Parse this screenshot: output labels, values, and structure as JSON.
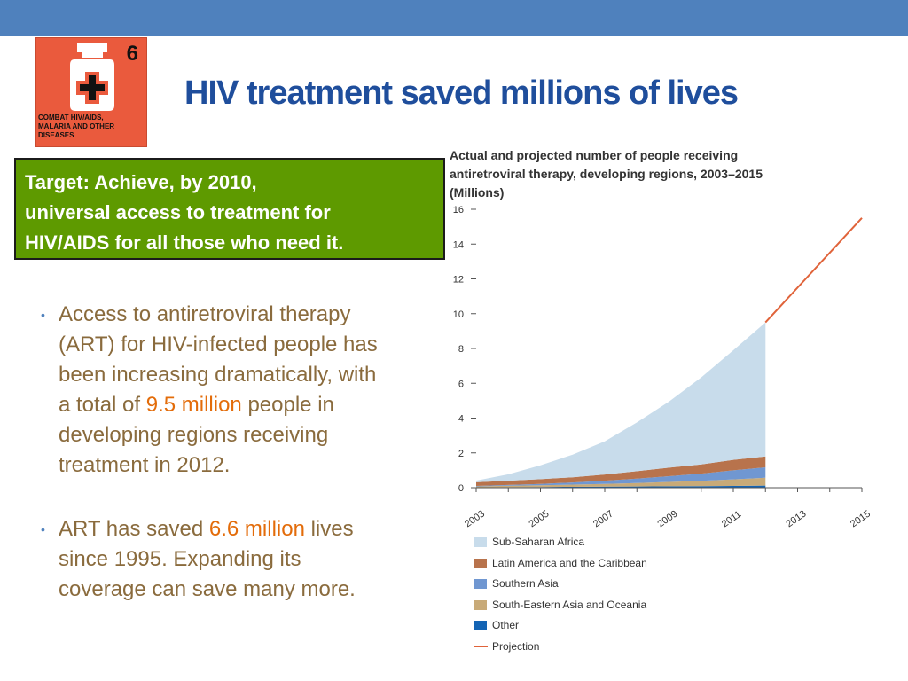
{
  "slide": {
    "title": "HIV treatment saved millions of lives",
    "accent_bar_color": "#4f81bd"
  },
  "mdg_badge": {
    "number": "6",
    "lines": [
      "COMBAT HIV/AIDS,",
      "MALARIA AND OTHER",
      "DISEASES"
    ],
    "icon": "medicine-bottle-icon",
    "color": "#ea5a3d"
  },
  "target_box": {
    "lines": [
      "Target:  Achieve, by 2010,",
      "universal access to treatment for",
      "HIV/AIDS for all those who need it."
    ],
    "background": "#5e9a00"
  },
  "bullets": [
    {
      "lines": [
        [
          "Access to antiretroviral therapy"
        ],
        [
          "(ART) for HIV-infected people has"
        ],
        [
          "been increasing dramatically, with"
        ],
        [
          "a total of ",
          "9.5 million",
          " people in"
        ],
        [
          "developing regions receiving"
        ],
        [
          "treatment in 2012."
        ]
      ]
    },
    {
      "lines": [
        [
          "ART has saved ",
          "6.6 million",
          " lives"
        ],
        [
          "since 1995.  Expanding its"
        ],
        [
          "coverage can save many more."
        ]
      ]
    }
  ],
  "chart_data": {
    "type": "area",
    "title_lines": [
      "Actual and projected number of people receiving",
      "antiretroviral therapy, developing regions, 2003–2015",
      "(Millions)"
    ],
    "xlabel": "",
    "ylabel": "",
    "ylim": [
      0,
      16
    ],
    "yticks": [
      0,
      2,
      4,
      6,
      8,
      10,
      12,
      14,
      16
    ],
    "xlim": [
      2003,
      2015
    ],
    "xticks": [
      "2003",
      "2005",
      "2007",
      "2009",
      "2011",
      "2013",
      "2015"
    ],
    "stacked": true,
    "grid": false,
    "legend_position": "bottom",
    "x": [
      2003,
      2004,
      2005,
      2006,
      2007,
      2008,
      2009,
      2010,
      2011,
      2012
    ],
    "series": [
      {
        "name": "Other",
        "color": "#1464b4",
        "values": [
          0.02,
          0.03,
          0.04,
          0.05,
          0.06,
          0.07,
          0.08,
          0.09,
          0.1,
          0.12
        ]
      },
      {
        "name": "South-Eastern Asia and Oceania",
        "color": "#c8aa78",
        "values": [
          0.05,
          0.08,
          0.1,
          0.13,
          0.16,
          0.2,
          0.25,
          0.3,
          0.38,
          0.45
        ]
      },
      {
        "name": "Southern Asia",
        "color": "#7097d1",
        "values": [
          0.03,
          0.05,
          0.08,
          0.12,
          0.18,
          0.25,
          0.33,
          0.42,
          0.52,
          0.6
        ]
      },
      {
        "name": "Latin America and the Caribbean",
        "color": "#b8734c",
        "values": [
          0.21,
          0.24,
          0.27,
          0.3,
          0.36,
          0.43,
          0.49,
          0.53,
          0.6,
          0.63
        ]
      },
      {
        "name": "Sub-Saharan Africa",
        "color": "#c8dceb",
        "values": [
          0.1,
          0.37,
          0.8,
          1.3,
          1.9,
          2.8,
          3.8,
          5.0,
          6.3,
          7.7
        ]
      }
    ],
    "projection": {
      "name": "Projection",
      "color": "#e0633a",
      "x": [
        2012,
        2015
      ],
      "values": [
        9.5,
        15.5
      ]
    }
  }
}
